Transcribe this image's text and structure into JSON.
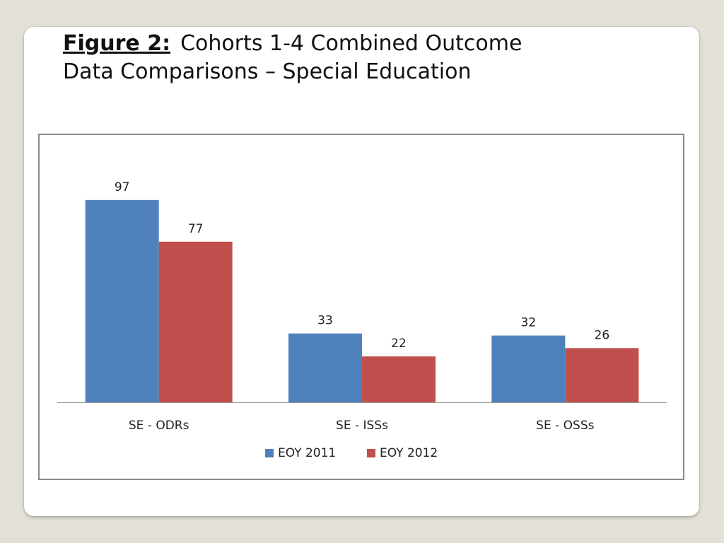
{
  "slide": {
    "figure_label": "Figure 2:",
    "title_line1": "Cohorts 1-4 Combined Outcome",
    "title_line2": "Data Comparisons –  Special Education"
  },
  "chart_data": {
    "type": "bar",
    "categories": [
      "SE - ODRs",
      "SE - ISSs",
      "SE - OSSs"
    ],
    "series": [
      {
        "name": "EOY 2011",
        "values": [
          97,
          33,
          32
        ],
        "color": "#4f81bd"
      },
      {
        "name": "EOY 2012",
        "values": [
          77,
          22,
          26
        ],
        "color": "#c0504d"
      }
    ],
    "ylim": [
      0,
      110
    ],
    "grid": false,
    "legend": "bottom",
    "data_labels": true
  }
}
